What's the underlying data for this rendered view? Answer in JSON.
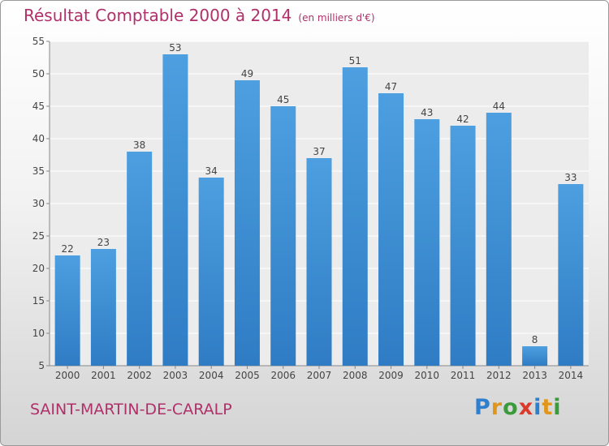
{
  "title": "Résultat Comptable 2000 à 2014",
  "unit_label": "(en milliers d'€)",
  "commune": "SAINT-MARTIN-DE-CARALP",
  "logo_text": "Proxiti",
  "colors": {
    "bar": "#4d9fe0",
    "bar_dark": "#2f7cc4",
    "title": "#b0306a"
  },
  "chart_data": {
    "type": "bar",
    "categories": [
      "2000",
      "2001",
      "2002",
      "2003",
      "2004",
      "2005",
      "2006",
      "2007",
      "2008",
      "2009",
      "2010",
      "2011",
      "2012",
      "2013",
      "2014"
    ],
    "values": [
      22,
      23,
      38,
      53,
      34,
      49,
      45,
      37,
      51,
      47,
      43,
      42,
      44,
      8,
      33
    ],
    "ylim": [
      5,
      55
    ],
    "yticks": [
      5,
      10,
      15,
      20,
      25,
      30,
      35,
      40,
      45,
      50,
      55
    ],
    "grid": true
  }
}
